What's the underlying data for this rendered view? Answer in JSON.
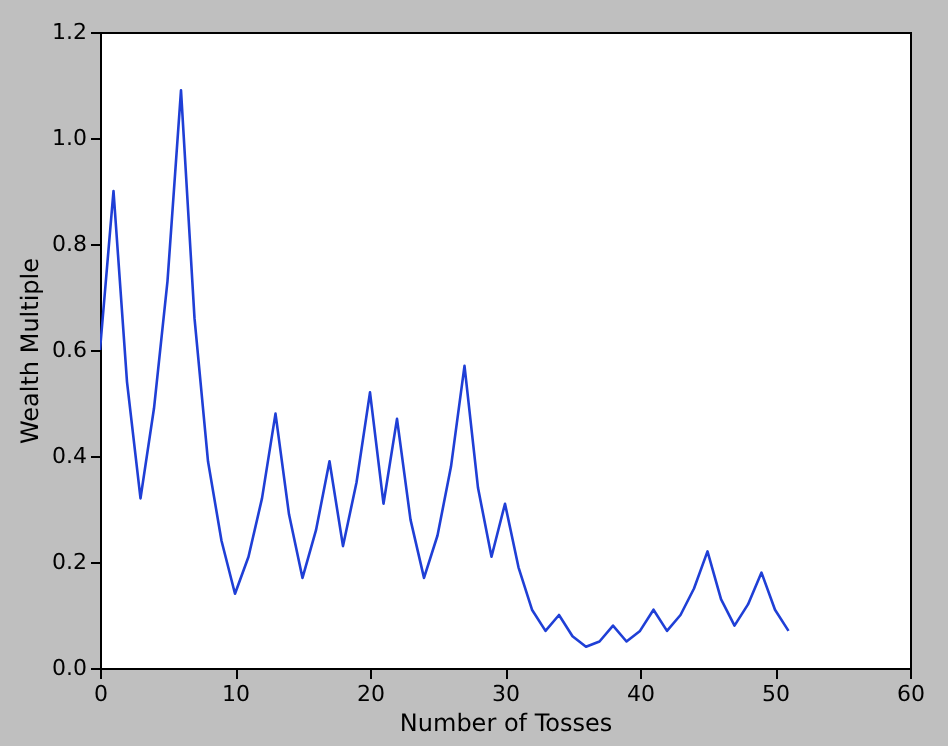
{
  "chart_data": {
    "type": "line",
    "xlabel": "Number of Tosses",
    "ylabel": "Wealth Multiple",
    "x": [
      0,
      1,
      2,
      3,
      4,
      5,
      6,
      7,
      8,
      9,
      10,
      11,
      12,
      13,
      14,
      15,
      16,
      17,
      18,
      19,
      20,
      21,
      22,
      23,
      24,
      25,
      26,
      27,
      28,
      29,
      30,
      31,
      32,
      33,
      34,
      35,
      36,
      37,
      38,
      39,
      40,
      41,
      42,
      43,
      44,
      45,
      46,
      47,
      48,
      49,
      50,
      51
    ],
    "series": [
      {
        "color": "#1f3fd6",
        "values": [
          0.6,
          0.9,
          0.54,
          0.32,
          0.49,
          0.73,
          1.09,
          0.66,
          0.39,
          0.24,
          0.14,
          0.21,
          0.32,
          0.48,
          0.29,
          0.17,
          0.26,
          0.39,
          0.23,
          0.35,
          0.52,
          0.31,
          0.47,
          0.28,
          0.17,
          0.25,
          0.38,
          0.57,
          0.34,
          0.21,
          0.31,
          0.19,
          0.11,
          0.07,
          0.1,
          0.06,
          0.04,
          0.05,
          0.08,
          0.05,
          0.07,
          0.11,
          0.07,
          0.1,
          0.15,
          0.22,
          0.13,
          0.08,
          0.12,
          0.18,
          0.11,
          0.07
        ]
      }
    ],
    "xlim": [
      0,
      60
    ],
    "xticks": [
      0,
      10,
      20,
      30,
      40,
      50,
      60
    ],
    "ylim": [
      0,
      1.2
    ],
    "yticks": [
      {
        "value": 0,
        "label": "0.0"
      },
      0.2,
      0.4,
      0.6,
      0.8,
      {
        "value": 1,
        "label": "1.0"
      },
      1.2
    ],
    "grid": false,
    "legend": false,
    "marker": "none",
    "line_style": "solid"
  }
}
